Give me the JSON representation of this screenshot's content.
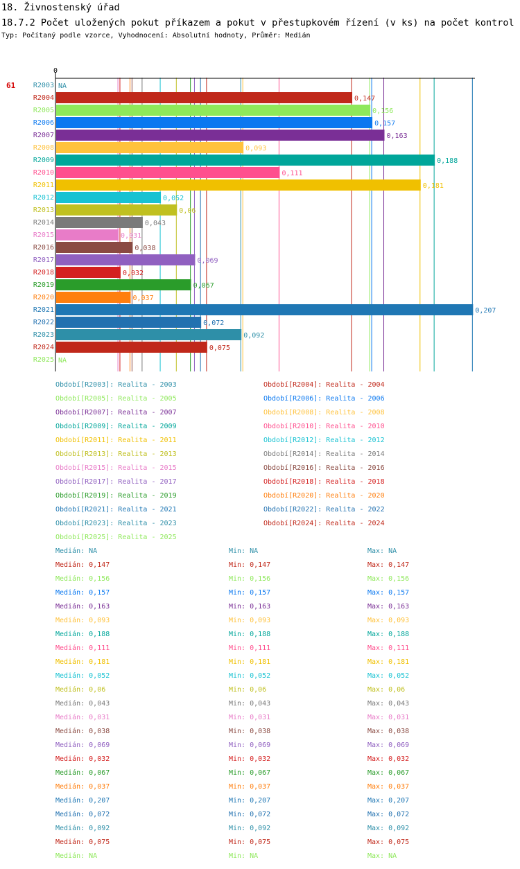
{
  "heading": {
    "line1": "18. Živnostenský úřad",
    "line2": "18.7.2 Počet uložených pokut příkazem a pokut v přestupkovém řízení (v ks) na počet kontrol",
    "line3": "Typ: Počítaný podle vzorce, Vyhodnocení: Absolutní hodnoty, Průměr: Medián"
  },
  "chart_data": {
    "type": "bar",
    "orientation": "horizontal",
    "row_marker": "61",
    "axis_zero_label": "0",
    "xlim": [
      0,
      0.21
    ],
    "categories": [
      "R2003",
      "R2004",
      "R2005",
      "R2006",
      "R2007",
      "R2008",
      "R2009",
      "R2010",
      "R2011",
      "R2012",
      "R2013",
      "R2014",
      "R2015",
      "R2016",
      "R2017",
      "R2018",
      "R2019",
      "R2020",
      "R2021",
      "R2022",
      "R2023",
      "R2024",
      "R2025"
    ],
    "values": [
      null,
      0.147,
      0.156,
      0.157,
      0.163,
      0.093,
      0.188,
      0.111,
      0.181,
      0.052,
      0.06,
      0.043,
      0.031,
      0.038,
      0.069,
      0.032,
      0.067,
      0.037,
      0.207,
      0.072,
      0.092,
      0.075,
      null
    ],
    "value_labels": [
      "NA",
      "0,147",
      "0,156",
      "0,157",
      "0,163",
      "0,093",
      "0,188",
      "0,111",
      "0,181",
      "0,052",
      "0,06",
      "0,043",
      "0,031",
      "0,038",
      "0,069",
      "0,032",
      "0,067",
      "0,037",
      "0,207",
      "0,072",
      "0,092",
      "0,075",
      "NA"
    ],
    "colors": [
      "#2e8fa8",
      "#c0281a",
      "#8ee85a",
      "#0a78f0",
      "#7a2f96",
      "#ffc23c",
      "#00a69a",
      "#ff4f8e",
      "#f0c000",
      "#18c2d2",
      "#c0c020",
      "#7a7a7a",
      "#e87cc8",
      "#8a4a42",
      "#9060c0",
      "#d42020",
      "#2a9c2a",
      "#ff7f0e",
      "#1f77b4",
      "#2271b0",
      "#2e8fa8",
      "#c0281a",
      "#8ee85a"
    ],
    "reference_lines": [
      0.147,
      0.156,
      0.157,
      0.163,
      0.093,
      0.188,
      0.111,
      0.181,
      0.052,
      0.06,
      0.043,
      0.031,
      0.038,
      0.069,
      0.032,
      0.067,
      0.037,
      0.207,
      0.072,
      0.092,
      0.075
    ]
  },
  "legend": [
    {
      "label": "Období[R2003]: Realita - 2003",
      "color": "#2e8fa8"
    },
    {
      "label": "Období[R2004]: Realita - 2004",
      "color": "#c0281a"
    },
    {
      "label": "Období[R2005]: Realita - 2005",
      "color": "#8ee85a"
    },
    {
      "label": "Období[R2006]: Realita - 2006",
      "color": "#0a78f0"
    },
    {
      "label": "Období[R2007]: Realita - 2007",
      "color": "#7a2f96"
    },
    {
      "label": "Období[R2008]: Realita - 2008",
      "color": "#ffc23c"
    },
    {
      "label": "Období[R2009]: Realita - 2009",
      "color": "#00a69a"
    },
    {
      "label": "Období[R2010]: Realita - 2010",
      "color": "#ff4f8e"
    },
    {
      "label": "Období[R2011]: Realita - 2011",
      "color": "#f0c000"
    },
    {
      "label": "Období[R2012]: Realita - 2012",
      "color": "#18c2d2"
    },
    {
      "label": "Období[R2013]: Realita - 2013",
      "color": "#c0c020"
    },
    {
      "label": "Období[R2014]: Realita - 2014",
      "color": "#7a7a7a"
    },
    {
      "label": "Období[R2015]: Realita - 2015",
      "color": "#e87cc8"
    },
    {
      "label": "Období[R2016]: Realita - 2016",
      "color": "#8a4a42"
    },
    {
      "label": "Období[R2017]: Realita - 2017",
      "color": "#9060c0"
    },
    {
      "label": "Období[R2018]: Realita - 2018",
      "color": "#d42020"
    },
    {
      "label": "Období[R2019]: Realita - 2019",
      "color": "#2a9c2a"
    },
    {
      "label": "Období[R2020]: Realita - 2020",
      "color": "#ff7f0e"
    },
    {
      "label": "Období[R2021]: Realita - 2021",
      "color": "#1f77b4"
    },
    {
      "label": "Období[R2022]: Realita - 2022",
      "color": "#2271b0"
    },
    {
      "label": "Období[R2023]: Realita - 2023",
      "color": "#2e8fa8"
    },
    {
      "label": "Období[R2024]: Realita - 2024",
      "color": "#c0281a"
    },
    {
      "label": "Období[R2025]: Realita - 2025",
      "color": "#8ee85a"
    }
  ],
  "stats": [
    {
      "median": "Medián: NA",
      "min": "Min: NA",
      "max": "Max: NA",
      "color": "#2e8fa8"
    },
    {
      "median": "Medián: 0,147",
      "min": "Min: 0,147",
      "max": "Max: 0,147",
      "color": "#c0281a"
    },
    {
      "median": "Medián: 0,156",
      "min": "Min: 0,156",
      "max": "Max: 0,156",
      "color": "#8ee85a"
    },
    {
      "median": "Medián: 0,157",
      "min": "Min: 0,157",
      "max": "Max: 0,157",
      "color": "#0a78f0"
    },
    {
      "median": "Medián: 0,163",
      "min": "Min: 0,163",
      "max": "Max: 0,163",
      "color": "#7a2f96"
    },
    {
      "median": "Medián: 0,093",
      "min": "Min: 0,093",
      "max": "Max: 0,093",
      "color": "#ffc23c"
    },
    {
      "median": "Medián: 0,188",
      "min": "Min: 0,188",
      "max": "Max: 0,188",
      "color": "#00a69a"
    },
    {
      "median": "Medián: 0,111",
      "min": "Min: 0,111",
      "max": "Max: 0,111",
      "color": "#ff4f8e"
    },
    {
      "median": "Medián: 0,181",
      "min": "Min: 0,181",
      "max": "Max: 0,181",
      "color": "#f0c000"
    },
    {
      "median": "Medián: 0,052",
      "min": "Min: 0,052",
      "max": "Max: 0,052",
      "color": "#18c2d2"
    },
    {
      "median": "Medián: 0,06",
      "min": "Min: 0,06",
      "max": "Max: 0,06",
      "color": "#c0c020"
    },
    {
      "median": "Medián: 0,043",
      "min": "Min: 0,043",
      "max": "Max: 0,043",
      "color": "#7a7a7a"
    },
    {
      "median": "Medián: 0,031",
      "min": "Min: 0,031",
      "max": "Max: 0,031",
      "color": "#e87cc8"
    },
    {
      "median": "Medián: 0,038",
      "min": "Min: 0,038",
      "max": "Max: 0,038",
      "color": "#8a4a42"
    },
    {
      "median": "Medián: 0,069",
      "min": "Min: 0,069",
      "max": "Max: 0,069",
      "color": "#9060c0"
    },
    {
      "median": "Medián: 0,032",
      "min": "Min: 0,032",
      "max": "Max: 0,032",
      "color": "#d42020"
    },
    {
      "median": "Medián: 0,067",
      "min": "Min: 0,067",
      "max": "Max: 0,067",
      "color": "#2a9c2a"
    },
    {
      "median": "Medián: 0,037",
      "min": "Min: 0,037",
      "max": "Max: 0,037",
      "color": "#ff7f0e"
    },
    {
      "median": "Medián: 0,207",
      "min": "Min: 0,207",
      "max": "Max: 0,207",
      "color": "#1f77b4"
    },
    {
      "median": "Medián: 0,072",
      "min": "Min: 0,072",
      "max": "Max: 0,072",
      "color": "#2271b0"
    },
    {
      "median": "Medián: 0,092",
      "min": "Min: 0,092",
      "max": "Max: 0,092",
      "color": "#2e8fa8"
    },
    {
      "median": "Medián: 0,075",
      "min": "Min: 0,075",
      "max": "Max: 0,075",
      "color": "#c0281a"
    },
    {
      "median": "Medián: NA",
      "min": "Min: NA",
      "max": "Max: NA",
      "color": "#8ee85a"
    }
  ]
}
